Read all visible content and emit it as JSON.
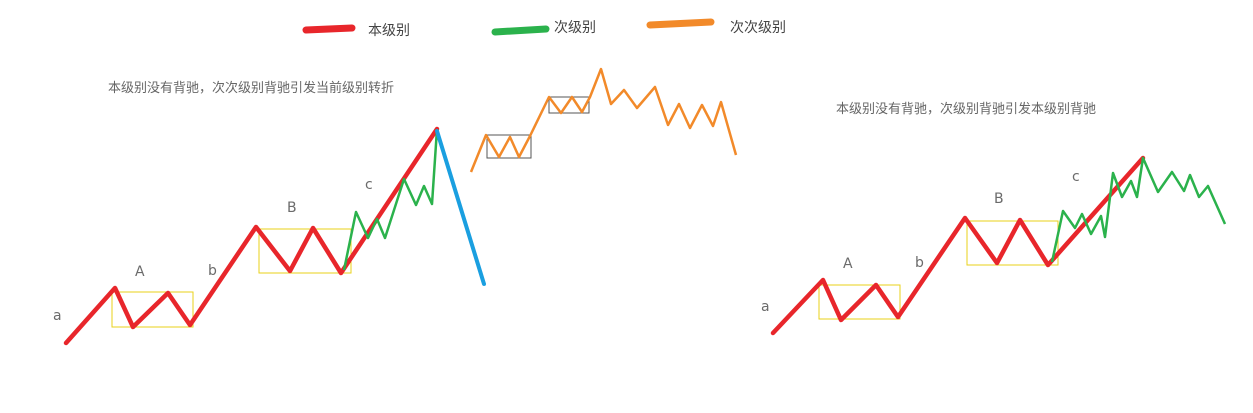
{
  "legend": [
    {
      "label": "本级别",
      "color": "#e8262b"
    },
    {
      "label": "次级别",
      "color": "#2bb24c"
    },
    {
      "label": "次次级别",
      "color": "#f28a2a"
    }
  ],
  "left": {
    "caption": "本级别没有背驰，次次级别背驰引发当前级别转折",
    "labels": {
      "a": "a",
      "A": "A",
      "b": "b",
      "B": "B",
      "c": "c"
    }
  },
  "right": {
    "caption": "本级别没有背驰，次级别背驰引发本级别背驰",
    "labels": {
      "a": "a",
      "A": "A",
      "b": "b",
      "B": "B",
      "c": "c"
    }
  },
  "colors": {
    "main": "#e8262b",
    "sub": "#2bb24c",
    "subsub": "#f28a2a",
    "reversal": "#1a9fe0",
    "center_box": "#e8d21a",
    "subsub_box": "#555555"
  }
}
